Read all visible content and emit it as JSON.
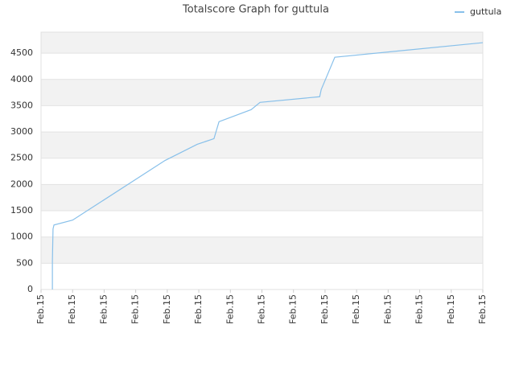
{
  "chart_data": {
    "type": "line",
    "title": "Totalscore Graph for guttula",
    "x": [
      0.36,
      0.36,
      0.38,
      0.41,
      1.0,
      3.93,
      4.95,
      5.48,
      5.64,
      6.66,
      6.94,
      8.83,
      8.88,
      9.31,
      14
    ],
    "series": [
      {
        "name": "guttula",
        "color": "#88c0ea",
        "values": [
          0,
          538,
          1152,
          1229,
          1321,
          2457,
          2765,
          2872,
          3195,
          3425,
          3563,
          3671,
          3809,
          4423,
          4700
        ]
      }
    ],
    "xlim": [
      0,
      14
    ],
    "xticks": [
      {
        "value": 0,
        "label": "Feb.15"
      },
      {
        "value": 1,
        "label": "Feb.15"
      },
      {
        "value": 2,
        "label": "Feb.15"
      },
      {
        "value": 3,
        "label": "Feb.15"
      },
      {
        "value": 4,
        "label": "Feb.15"
      },
      {
        "value": 5,
        "label": "Feb.15"
      },
      {
        "value": 6,
        "label": "Feb.15"
      },
      {
        "value": 7,
        "label": "Feb.15"
      },
      {
        "value": 8,
        "label": "Feb.15"
      },
      {
        "value": 9,
        "label": "Feb.15"
      },
      {
        "value": 10,
        "label": "Feb.15"
      },
      {
        "value": 11,
        "label": "Feb.15"
      },
      {
        "value": 12,
        "label": "Feb.15"
      },
      {
        "value": 13,
        "label": "Feb.15"
      },
      {
        "value": 14,
        "label": "Feb.15"
      }
    ],
    "ylim": [
      0,
      4900
    ],
    "yticks": [
      0,
      500,
      1000,
      1500,
      2000,
      2500,
      3000,
      3500,
      4000,
      4500
    ],
    "grid": true,
    "legend": "top-right"
  }
}
